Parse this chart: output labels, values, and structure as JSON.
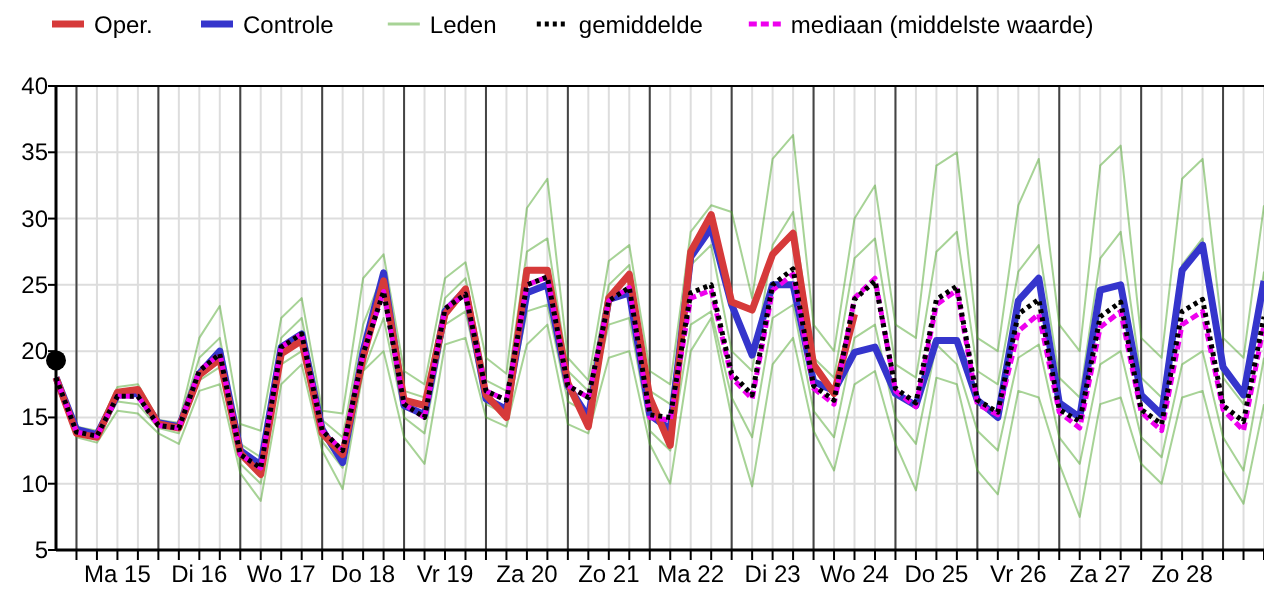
{
  "chart_data": {
    "type": "line",
    "legend": "top",
    "grid": true,
    "marker": "none",
    "categories": [
      null,
      null,
      null,
      "Ma 15",
      null,
      null,
      null,
      "Di 16",
      null,
      null,
      null,
      "Wo 17",
      null,
      null,
      null,
      "Do 18",
      null,
      null,
      null,
      "Vr 19",
      null,
      null,
      null,
      "Za 20",
      null,
      null,
      null,
      "Zo 21",
      null,
      null,
      null,
      "Ma 22",
      null,
      null,
      null,
      "Di 23",
      null,
      null,
      null,
      "Wo 24",
      null,
      null,
      null,
      "Do 25",
      null,
      null,
      null,
      "Vr 26",
      null,
      null,
      null,
      "Za 27",
      null,
      null,
      null,
      "Zo 28",
      null,
      null,
      null,
      null
    ],
    "ylim": [
      5,
      40
    ],
    "yticks": [
      5,
      10,
      15,
      20,
      25,
      30,
      35,
      40
    ],
    "series": [
      {
        "name": "Oper.",
        "color": "#d63a3a",
        "values": [
          18,
          13.8,
          13.5,
          16.9,
          17.1,
          14.5,
          14.2,
          18.2,
          19.4,
          12.3,
          10.7,
          19.8,
          20.8,
          13.8,
          12.2,
          19.5,
          25.3,
          16.3,
          15.9,
          22.8,
          24.7,
          16.7,
          15.0,
          26.1,
          26.1,
          17.6,
          14.3,
          24.0,
          25.8,
          16.5,
          12.9,
          27.5,
          30.3,
          23.7,
          23.1,
          27.3,
          28.9,
          19.0,
          16.8,
          22.8,
          null,
          null,
          null,
          null,
          null,
          null,
          null,
          null,
          null,
          null,
          null,
          null,
          null,
          null,
          null,
          null,
          null,
          null,
          null,
          null
        ]
      },
      {
        "name": "Controle",
        "color": "#3535cc",
        "values": [
          18,
          14.1,
          13.7,
          16.7,
          16.8,
          14.6,
          14.3,
          18.3,
          20.0,
          12.5,
          11.4,
          20.3,
          21.3,
          14.1,
          11.6,
          20.0,
          25.9,
          15.9,
          15.2,
          23.0,
          24.6,
          16.4,
          15.6,
          24.4,
          25.0,
          17.4,
          15.0,
          23.9,
          24.4,
          15.2,
          14.1,
          27.1,
          29.3,
          23.5,
          19.7,
          25.0,
          25.0,
          17.7,
          17.0,
          19.9,
          20.3,
          16.8,
          15.9,
          20.8,
          20.8,
          16.3,
          15.0,
          23.8,
          25.5,
          16.1,
          15.0,
          24.6,
          25.0,
          16.7,
          15.2,
          26.1,
          28.0,
          18.8,
          16.7,
          25.3
        ]
      },
      {
        "name": "Leden",
        "color": "#4fa82e",
        "values": [
          18,
          14.3,
          14,
          17.3,
          17.5,
          14.8,
          14.6,
          21,
          23.4,
          14.5,
          14,
          22.5,
          24,
          15.5,
          15.3,
          25.5,
          27.3,
          18.5,
          17.5,
          25.5,
          26.7,
          19.5,
          18.3,
          30.8,
          33,
          19.5,
          17.8,
          26.8,
          28,
          18.5,
          17.5,
          29,
          31,
          30.5,
          24,
          34.5,
          36.3,
          22,
          20,
          30,
          32.5,
          22,
          21,
          34,
          35,
          21,
          20,
          31,
          34.5,
          22,
          20,
          34,
          35.5,
          21,
          19.5,
          33,
          34.5,
          21,
          19.5,
          31
        ]
      },
      {
        "name": "gemiddelde",
        "color": "#000000",
        "line_style": "dotted",
        "values": [
          18,
          13.9,
          13.6,
          16.6,
          16.6,
          14.4,
          14.2,
          18.5,
          19.8,
          12.2,
          11.2,
          20.3,
          21.3,
          14.0,
          12.5,
          19.8,
          24.5,
          16.0,
          15.0,
          23.2,
          24.3,
          17.0,
          16.3,
          25.0,
          25.6,
          17.4,
          16.5,
          23.8,
          24.8,
          15.2,
          15.0,
          24.4,
          25.0,
          18.3,
          16.7,
          25.0,
          26.2,
          17.4,
          16.3,
          23.9,
          25.3,
          17.2,
          16.1,
          23.9,
          24.9,
          16.3,
          15.4,
          22.8,
          23.9,
          15.6,
          14.7,
          22.6,
          23.7,
          15.6,
          14.5,
          23.0,
          23.9,
          15.9,
          14.7,
          22.6
        ]
      },
      {
        "name": "mediaan (middelste waarde)",
        "color": "#ee00ee",
        "line_style": "dashed",
        "values": [
          18,
          13.9,
          13.6,
          16.6,
          16.6,
          14.4,
          14.2,
          18.5,
          19.8,
          12.2,
          11.2,
          20.3,
          21.3,
          14.0,
          12.5,
          19.8,
          24.5,
          16.0,
          15.0,
          23.2,
          24.3,
          17.0,
          16.3,
          25.0,
          25.6,
          17.4,
          16.5,
          23.8,
          24.8,
          15.0,
          14.8,
          24.0,
          24.6,
          18.0,
          16.4,
          24.6,
          25.8,
          17.2,
          16.0,
          24.0,
          25.5,
          17.0,
          15.8,
          23.5,
          24.6,
          16.0,
          15.2,
          21.5,
          22.8,
          15.4,
          14.2,
          21.8,
          23.0,
          15.4,
          14.0,
          22.0,
          23.0,
          15.6,
          14.0,
          22.0
        ]
      },
      {
        "color": "#4fa82e",
        "values": [
          18,
          13.5,
          13.1,
          15.5,
          15.3,
          13.8,
          13,
          17,
          17.5,
          10.8,
          8.7,
          17.5,
          19,
          12.5,
          9.6,
          18.5,
          20,
          13.5,
          11.5,
          20.5,
          21,
          15,
          14.3,
          20.5,
          22,
          14.5,
          13.8,
          19.5,
          20,
          13,
          10,
          20,
          22.5,
          15,
          9.8,
          19,
          21,
          14,
          11,
          17.5,
          18.5,
          13,
          9.5,
          18,
          17.5,
          11,
          9.2,
          17,
          16.5,
          11.5,
          7.5,
          16,
          16.5,
          11.5,
          10,
          16.5,
          17,
          11,
          8.5,
          16
        ]
      },
      {
        "color": "#4fa82e",
        "values": [
          18,
          14.0,
          13.8,
          17.0,
          17.2,
          14.7,
          14.5,
          19.5,
          21.0,
          13.0,
          12.0,
          21.0,
          22.5,
          14.8,
          13.5,
          22.0,
          26.0,
          17.0,
          16.5,
          24.0,
          25.5,
          17.8,
          17.0,
          27.5,
          28.5,
          18.5,
          17.0,
          25.0,
          26.5,
          17.0,
          16.0,
          26.5,
          28.0,
          20.0,
          18.5,
          28.0,
          30.5,
          19.5,
          18.0,
          27.0,
          28.5,
          19.0,
          18.0,
          27.5,
          29.0,
          18.5,
          17.5,
          26.0,
          28.0,
          18.0,
          16.5,
          27.0,
          29.0,
          18.0,
          16.5,
          26.5,
          28.5,
          18.0,
          16.0,
          26.0
        ]
      },
      {
        "color": "#4fa82e",
        "values": [
          18,
          13.7,
          13.4,
          16.2,
          16.0,
          14.2,
          13.8,
          17.8,
          18.8,
          11.5,
          10.0,
          19.0,
          20.0,
          13.2,
          11.2,
          18.5,
          22.5,
          15.0,
          13.8,
          22.0,
          23.0,
          16.0,
          15.2,
          23.0,
          23.5,
          16.2,
          15.3,
          22.0,
          22.5,
          14.0,
          12.5,
          22.0,
          23.0,
          16.5,
          13.5,
          22.5,
          23.5,
          15.5,
          13.5,
          21.0,
          22.0,
          15.0,
          13.0,
          20.5,
          19.0,
          14.0,
          12.5,
          19.5,
          20.5,
          13.5,
          11.5,
          19.0,
          20.0,
          13.5,
          12.0,
          19.0,
          20.0,
          13.5,
          11.0,
          19.5
        ]
      },
      {
        "type": "scatter",
        "marker": "circle",
        "color": "#000000",
        "values": [
          19.3,
          null,
          null,
          null,
          null,
          null,
          null,
          null,
          null,
          null,
          null,
          null,
          null,
          null,
          null,
          null,
          null,
          null,
          null,
          null,
          null,
          null,
          null,
          null,
          null,
          null,
          null,
          null,
          null,
          null,
          null,
          null,
          null,
          null,
          null,
          null,
          null,
          null,
          null,
          null,
          null,
          null,
          null,
          null,
          null,
          null,
          null,
          null,
          null,
          null,
          null,
          null,
          null,
          null,
          null,
          null,
          null,
          null,
          null,
          null
        ]
      }
    ]
  }
}
